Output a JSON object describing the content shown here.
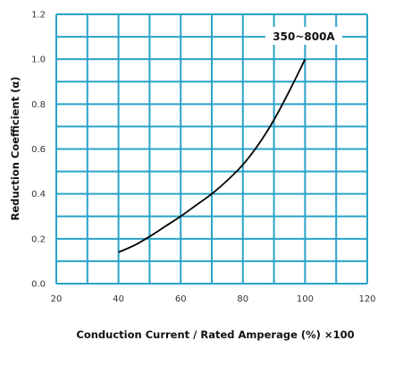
{
  "chart_data": {
    "type": "line",
    "title": "",
    "xlabel": "Conduction Current / Rated Amperage (%) ×100",
    "ylabel": "Reduction Coefficient (α)",
    "xlim": [
      20,
      120
    ],
    "ylim": [
      0,
      1.2
    ],
    "x_ticks": [
      "20",
      "40",
      "60",
      "80",
      "100",
      "120"
    ],
    "y_ticks": [
      "0.0",
      "0.2",
      "0.4",
      "0.6",
      "0.8",
      "1.0",
      "1.2"
    ],
    "x_grid_step": 10,
    "y_grid_step": 0.1,
    "grid": true,
    "grid_color": "#29a3c9",
    "line_color": "#000000",
    "annotation": "350~800A",
    "series": [
      {
        "x": [
          40,
          45,
          50,
          55,
          60,
          65,
          70,
          75,
          80,
          85,
          90,
          95,
          100
        ],
        "y": [
          0.14,
          0.17,
          0.21,
          0.255,
          0.3,
          0.35,
          0.4,
          0.46,
          0.53,
          0.62,
          0.73,
          0.86,
          1.0
        ]
      }
    ]
  }
}
